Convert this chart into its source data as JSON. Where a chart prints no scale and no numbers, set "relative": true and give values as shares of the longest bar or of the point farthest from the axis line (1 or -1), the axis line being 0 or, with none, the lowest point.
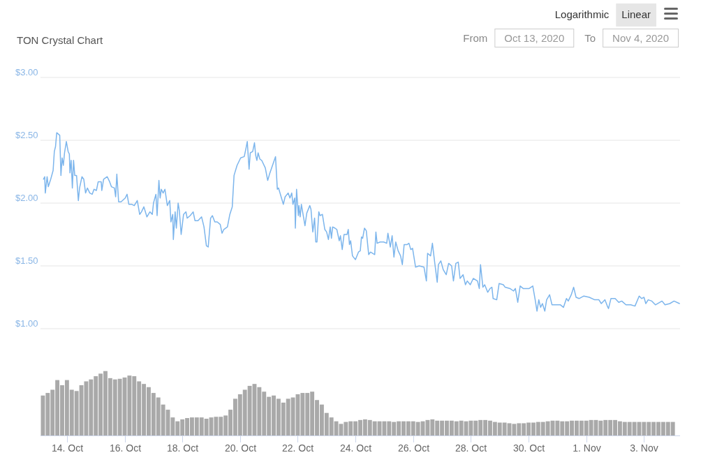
{
  "chart_data": [
    {
      "type": "line",
      "title": "TON Crystal Chart",
      "annotations": [
        "Logarithmic",
        "Linear",
        "From",
        "Oct 13, 2020",
        "To",
        "Nov 4, 2020"
      ],
      "color": "#7cb5ec",
      "x": [
        "2020-10-13T04:30",
        "2020-10-13T05:30",
        "2020-10-13T06:00",
        "2020-10-13T07:30",
        "2020-10-13T08:30",
        "2020-10-13T10:30",
        "2020-10-13T12:30",
        "2020-10-13T13:30",
        "2020-10-13T14:30",
        "2020-10-13T15:30",
        "2020-10-13T18:00",
        "2020-10-13T19:00",
        "2020-10-13T20:00",
        "2020-10-13T21:00",
        "2020-10-13T22:00",
        "2020-10-13T23:30",
        "2020-10-14T01:00",
        "2020-10-14T02:00",
        "2020-10-14T02:30",
        "2020-10-14T03:30",
        "2020-10-14T04:30",
        "2020-10-14T05:30",
        "2020-10-14T06:30",
        "2020-10-14T08:00",
        "2020-10-14T09:30",
        "2020-10-14T10:30",
        "2020-10-14T12:30",
        "2020-10-14T14:00",
        "2020-10-14T15:30",
        "2020-10-14T17:00",
        "2020-10-14T19:00",
        "2020-10-14T21:00",
        "2020-10-14T22:30",
        "2020-10-15T00:30",
        "2020-10-15T02:00",
        "2020-10-15T04:30",
        "2020-10-15T05:00",
        "2020-10-15T06:30",
        "2020-10-15T09:30",
        "2020-10-15T11:30",
        "2020-10-15T13:00",
        "2020-10-15T15:30",
        "2020-10-15T16:30",
        "2020-10-15T17:30",
        "2020-10-15T19:00",
        "2020-10-15T21:00",
        "2020-10-16T00:30",
        "2020-10-16T02:00",
        "2020-10-16T03:30",
        "2020-10-16T06:00",
        "2020-10-16T08:00",
        "2020-10-16T10:30",
        "2020-10-16T12:30",
        "2020-10-16T14:00",
        "2020-10-16T16:00",
        "2020-10-16T18:30",
        "2020-10-16T21:00",
        "2020-10-16T23:00",
        "2020-10-17T00:00",
        "2020-10-17T02:00",
        "2020-10-17T03:00",
        "2020-10-17T04:30",
        "2020-10-17T05:30",
        "2020-10-17T06:30",
        "2020-10-17T08:00",
        "2020-10-17T09:30",
        "2020-10-17T11:30",
        "2020-10-17T13:30",
        "2020-10-17T14:30",
        "2020-10-17T16:00",
        "2020-10-17T16:30",
        "2020-10-17T18:00",
        "2020-10-17T19:00",
        "2020-10-17T20:30",
        "2020-10-17T21:30",
        "2020-10-17T23:00",
        "2020-10-18T01:00",
        "2020-10-18T03:00",
        "2020-10-18T04:00",
        "2020-10-18T06:30",
        "2020-10-18T09:00",
        "2020-10-18T10:30",
        "2020-10-18T13:00",
        "2020-10-18T16:00",
        "2020-10-18T18:00",
        "2020-10-18T20:00",
        "2020-10-18T21:30",
        "2020-10-18T23:30",
        "2020-10-19T01:00",
        "2020-10-19T03:00",
        "2020-10-19T05:00",
        "2020-10-19T07:30",
        "2020-10-19T09:00",
        "2020-10-19T10:30",
        "2020-10-19T13:30",
        "2020-10-19T15:30",
        "2020-10-19T17:30",
        "2020-10-19T19:00",
        "2020-10-19T21:30",
        "2020-10-20T00:30",
        "2020-10-20T03:30",
        "2020-10-20T05:00",
        "2020-10-20T06:00",
        "2020-10-20T07:30",
        "2020-10-20T08:30",
        "2020-10-20T10:30",
        "2020-10-20T12:00",
        "2020-10-20T13:00",
        "2020-10-20T14:00",
        "2020-10-20T15:00",
        "2020-10-20T16:30",
        "2020-10-20T18:00",
        "2020-10-20T21:00",
        "2020-10-20T23:00",
        "2020-10-21T00:30",
        "2020-10-21T05:30",
        "2020-10-21T07:00",
        "2020-10-21T08:00",
        "2020-10-21T12:00",
        "2020-10-21T13:30",
        "2020-10-21T16:00",
        "2020-10-21T17:30",
        "2020-10-21T19:00",
        "2020-10-21T20:00",
        "2020-10-21T21:30",
        "2020-10-21T22:00",
        "2020-10-21T23:00",
        "2020-10-22T00:30",
        "2020-10-22T01:00",
        "2020-10-22T02:00",
        "2020-10-22T03:00",
        "2020-10-22T06:00",
        "2020-10-22T07:30",
        "2020-10-22T10:00",
        "2020-10-22T11:00",
        "2020-10-22T12:30",
        "2020-10-22T14:00",
        "2020-10-22T15:00",
        "2020-10-22T16:00",
        "2020-10-22T17:30",
        "2020-10-22T18:30",
        "2020-10-22T20:30",
        "2020-10-22T22:30",
        "2020-10-23T00:00",
        "2020-10-23T01:30",
        "2020-10-23T03:00",
        "2020-10-23T04:00",
        "2020-10-23T05:00",
        "2020-10-23T07:00",
        "2020-10-23T08:30",
        "2020-10-23T10:30",
        "2020-10-23T11:30",
        "2020-10-23T13:00",
        "2020-10-23T14:30",
        "2020-10-23T17:00",
        "2020-10-23T18:00",
        "2020-10-23T19:00",
        "2020-10-23T20:00",
        "2020-10-23T21:30",
        "2020-10-24T00:00",
        "2020-10-24T02:30",
        "2020-10-24T04:00",
        "2020-10-24T05:00",
        "2020-10-24T06:00",
        "2020-10-24T07:30",
        "2020-10-24T09:00",
        "2020-10-24T11:00",
        "2020-10-24T12:30",
        "2020-10-24T16:00",
        "2020-10-24T17:00",
        "2020-10-24T18:00",
        "2020-10-24T20:30",
        "2020-10-24T23:30",
        "2020-10-25T02:00",
        "2020-10-25T03:00",
        "2020-10-25T05:00",
        "2020-10-25T06:30",
        "2020-10-25T08:00",
        "2020-10-25T09:30",
        "2020-10-25T11:30",
        "2020-10-25T13:30",
        "2020-10-25T15:00",
        "2020-10-25T16:30",
        "2020-10-25T19:00",
        "2020-10-25T20:30",
        "2020-10-25T22:00",
        "2020-10-25T23:30",
        "2020-10-26T02:00",
        "2020-10-26T05:00",
        "2020-10-26T09:00",
        "2020-10-26T11:00",
        "2020-10-26T12:00",
        "2020-10-26T14:30",
        "2020-10-26T16:00",
        "2020-10-26T18:00",
        "2020-10-26T20:00",
        "2020-10-26T21:00",
        "2020-10-26T23:00",
        "2020-10-27T01:00",
        "2020-10-27T03:30",
        "2020-10-27T05:30",
        "2020-10-27T08:00",
        "2020-10-27T09:30",
        "2020-10-27T11:30",
        "2020-10-27T13:30",
        "2020-10-27T15:00",
        "2020-10-27T17:30",
        "2020-10-27T19:30",
        "2020-10-27T21:00",
        "2020-10-27T23:30",
        "2020-10-28T02:00",
        "2020-10-28T05:30",
        "2020-10-28T07:00",
        "2020-10-28T08:00",
        "2020-10-28T10:00",
        "2020-10-28T11:30",
        "2020-10-28T14:00",
        "2020-10-28T16:00",
        "2020-10-28T17:30",
        "2020-10-28T18:30",
        "2020-10-28T21:30",
        "2020-10-28T23:30",
        "2020-10-29T03:00",
        "2020-10-29T04:30",
        "2020-10-29T08:30",
        "2020-10-29T11:30",
        "2020-10-29T13:00",
        "2020-10-29T15:00",
        "2020-10-29T17:00",
        "2020-10-29T19:30",
        "2020-10-30T00:30",
        "2020-10-30T03:30",
        "2020-10-30T05:30",
        "2020-10-30T07:00",
        "2020-10-30T08:30",
        "2020-10-30T10:00",
        "2020-10-30T11:30",
        "2020-10-30T13:30",
        "2020-10-30T15:00",
        "2020-10-30T17:30",
        "2020-10-30T19:30",
        "2020-10-30T22:30",
        "2020-10-31T02:30",
        "2020-10-31T05:00",
        "2020-10-31T07:30",
        "2020-10-31T09:00",
        "2020-10-31T11:30",
        "2020-10-31T13:30",
        "2020-10-31T15:30",
        "2020-10-31T18:00",
        "2020-10-31T22:00",
        "2020-11-01T02:30",
        "2020-11-01T07:00",
        "2020-11-01T10:30",
        "2020-11-01T12:30",
        "2020-11-01T15:30",
        "2020-11-01T17:30",
        "2020-11-01T18:30",
        "2020-11-01T20:30",
        "2020-11-02T00:00",
        "2020-11-02T03:00",
        "2020-11-02T05:30",
        "2020-11-02T09:00",
        "2020-11-02T13:00",
        "2020-11-02T16:30",
        "2020-11-02T20:00",
        "2020-11-02T22:00",
        "2020-11-03T00:00",
        "2020-11-03T01:30",
        "2020-11-03T03:30",
        "2020-11-03T06:30",
        "2020-11-03T09:30",
        "2020-11-03T15:00",
        "2020-11-03T17:30",
        "2020-11-03T21:30",
        "2020-11-04T01:00",
        "2020-11-04T05:30"
      ],
      "values": [
        2.19,
        2.21,
        2.08,
        2.21,
        2.13,
        2.19,
        2.26,
        2.41,
        2.45,
        2.56,
        2.54,
        2.22,
        2.36,
        2.3,
        2.4,
        2.49,
        2.41,
        2.39,
        2.24,
        2.34,
        2.12,
        2.34,
        2.22,
        2.22,
        2.02,
        2.12,
        2.21,
        2.19,
        2.08,
        2.12,
        2.08,
        2.07,
        2.11,
        2.1,
        2.17,
        2.17,
        2.1,
        2.19,
        2.21,
        2.17,
        2.13,
        2.12,
        2.05,
        2.23,
        2.01,
        2.01,
        2.04,
        2.07,
        1.99,
        1.99,
        1.98,
        2.02,
        1.91,
        1.93,
        1.97,
        1.89,
        1.93,
        1.91,
        2.0,
        2.07,
        1.9,
        2.18,
        2.04,
        2.11,
        2.08,
        2.11,
        1.98,
        2.02,
        1.85,
        1.91,
        1.71,
        1.93,
        1.8,
        2.0,
        1.94,
        1.75,
        1.91,
        1.93,
        1.88,
        1.9,
        1.93,
        1.86,
        1.86,
        1.89,
        1.81,
        1.66,
        1.65,
        1.88,
        1.9,
        1.85,
        1.85,
        1.83,
        1.76,
        1.79,
        1.81,
        1.91,
        1.97,
        2.22,
        2.3,
        2.36,
        2.37,
        2.44,
        2.49,
        2.27,
        2.4,
        2.41,
        2.48,
        2.38,
        2.34,
        2.4,
        2.35,
        2.34,
        2.28,
        2.18,
        2.23,
        2.37,
        2.11,
        2.12,
        1.99,
        2.05,
        2.08,
        2.04,
        2.08,
        1.99,
        2.04,
        1.8,
        2.11,
        1.9,
        1.98,
        1.89,
        1.99,
        1.82,
        1.92,
        1.98,
        1.95,
        1.77,
        1.88,
        1.69,
        1.69,
        1.93,
        1.9,
        1.91,
        1.79,
        1.77,
        1.71,
        1.81,
        1.72,
        1.81,
        1.8,
        1.79,
        1.7,
        1.74,
        1.63,
        1.75,
        1.75,
        1.79,
        1.67,
        1.7,
        1.58,
        1.55,
        1.61,
        1.62,
        1.73,
        1.72,
        1.8,
        1.78,
        1.59,
        1.61,
        1.59,
        1.77,
        1.68,
        1.69,
        1.69,
        1.68,
        1.76,
        1.65,
        1.74,
        1.57,
        1.69,
        1.62,
        1.58,
        1.51,
        1.67,
        1.67,
        1.68,
        1.63,
        1.64,
        1.49,
        1.5,
        1.49,
        1.38,
        1.6,
        1.58,
        1.68,
        1.52,
        1.37,
        1.51,
        1.54,
        1.47,
        1.43,
        1.52,
        1.5,
        1.38,
        1.52,
        1.53,
        1.4,
        1.43,
        1.35,
        1.38,
        1.35,
        1.4,
        1.38,
        1.32,
        1.51,
        1.33,
        1.35,
        1.29,
        1.32,
        1.33,
        1.24,
        1.23,
        1.36,
        1.35,
        1.33,
        1.32,
        1.3,
        1.32,
        1.21,
        1.34,
        1.32,
        1.32,
        1.34,
        1.23,
        1.14,
        1.23,
        1.17,
        1.2,
        1.14,
        1.23,
        1.27,
        1.19,
        1.19,
        1.19,
        1.17,
        1.24,
        1.22,
        1.27,
        1.33,
        1.25,
        1.24,
        1.26,
        1.25,
        1.23,
        1.23,
        1.2,
        1.23,
        1.18,
        1.16,
        1.24,
        1.24,
        1.21,
        1.22,
        1.19,
        1.19,
        1.18,
        1.26,
        1.24,
        1.25,
        1.2,
        1.23,
        1.22,
        1.19,
        1.22,
        1.19,
        1.2,
        1.22,
        1.2
      ],
      "xlim": [
        "2020-10-13T02:00",
        "2020-11-04T06:00"
      ],
      "ylim": [
        1,
        3
      ],
      "yticks": [
        {
          "value": 1,
          "label": "$1.00"
        },
        {
          "value": 1.5,
          "label": "$1.50"
        },
        {
          "value": 2,
          "label": "$2.00"
        },
        {
          "value": 2.5,
          "label": "$2.50"
        },
        {
          "value": 3,
          "label": "$3.00"
        }
      ],
      "grid": "y",
      "tick_labels": "y"
    },
    {
      "type": "bar",
      "relative": true,
      "color": "#a9a9a9",
      "x": [
        "2020-10-13T04:00",
        "2020-10-13T08:00",
        "2020-10-13T12:00",
        "2020-10-13T16:00",
        "2020-10-13T20:00",
        "2020-10-14T00:00",
        "2020-10-14T04:00",
        "2020-10-14T08:00",
        "2020-10-14T12:00",
        "2020-10-14T16:00",
        "2020-10-14T20:00",
        "2020-10-15T00:00",
        "2020-10-15T04:00",
        "2020-10-15T08:00",
        "2020-10-15T12:00",
        "2020-10-15T16:00",
        "2020-10-15T20:00",
        "2020-10-16T00:00",
        "2020-10-16T04:00",
        "2020-10-16T08:00",
        "2020-10-16T12:00",
        "2020-10-16T16:00",
        "2020-10-16T20:00",
        "2020-10-17T00:00",
        "2020-10-17T04:00",
        "2020-10-17T08:00",
        "2020-10-17T12:00",
        "2020-10-17T16:00",
        "2020-10-17T20:00",
        "2020-10-18T00:00",
        "2020-10-18T04:00",
        "2020-10-18T08:00",
        "2020-10-18T12:00",
        "2020-10-18T16:00",
        "2020-10-18T20:00",
        "2020-10-19T00:00",
        "2020-10-19T04:00",
        "2020-10-19T08:00",
        "2020-10-19T12:00",
        "2020-10-19T16:00",
        "2020-10-19T20:00",
        "2020-10-20T00:00",
        "2020-10-20T04:00",
        "2020-10-20T08:00",
        "2020-10-20T12:00",
        "2020-10-20T16:00",
        "2020-10-20T20:00",
        "2020-10-21T00:00",
        "2020-10-21T04:00",
        "2020-10-21T08:00",
        "2020-10-21T12:00",
        "2020-10-21T16:00",
        "2020-10-21T20:00",
        "2020-10-22T00:00",
        "2020-10-22T04:00",
        "2020-10-22T08:00",
        "2020-10-22T12:00",
        "2020-10-22T16:00",
        "2020-10-22T20:00",
        "2020-10-23T00:00",
        "2020-10-23T04:00",
        "2020-10-23T08:00",
        "2020-10-23T12:00",
        "2020-10-23T16:00",
        "2020-10-23T20:00",
        "2020-10-24T00:00",
        "2020-10-24T04:00",
        "2020-10-24T08:00",
        "2020-10-24T12:00",
        "2020-10-24T16:00",
        "2020-10-24T20:00",
        "2020-10-25T00:00",
        "2020-10-25T04:00",
        "2020-10-25T08:00",
        "2020-10-25T12:00",
        "2020-10-25T16:00",
        "2020-10-25T20:00",
        "2020-10-26T00:00",
        "2020-10-26T04:00",
        "2020-10-26T08:00",
        "2020-10-26T12:00",
        "2020-10-26T16:00",
        "2020-10-26T20:00",
        "2020-10-27T00:00",
        "2020-10-27T04:00",
        "2020-10-27T08:00",
        "2020-10-27T12:00",
        "2020-10-27T16:00",
        "2020-10-27T20:00",
        "2020-10-28T00:00",
        "2020-10-28T04:00",
        "2020-10-28T08:00",
        "2020-10-28T12:00",
        "2020-10-28T16:00",
        "2020-10-28T20:00",
        "2020-10-29T00:00",
        "2020-10-29T04:00",
        "2020-10-29T08:00",
        "2020-10-29T12:00",
        "2020-10-29T16:00",
        "2020-10-29T20:00",
        "2020-10-30T00:00",
        "2020-10-30T04:00",
        "2020-10-30T08:00",
        "2020-10-30T12:00",
        "2020-10-30T16:00",
        "2020-10-30T20:00",
        "2020-10-31T00:00",
        "2020-10-31T04:00",
        "2020-10-31T08:00",
        "2020-10-31T12:00",
        "2020-10-31T16:00",
        "2020-10-31T20:00",
        "2020-11-01T00:00",
        "2020-11-01T04:00",
        "2020-11-01T08:00",
        "2020-11-01T12:00",
        "2020-11-01T16:00",
        "2020-11-01T20:00",
        "2020-11-02T00:00",
        "2020-11-02T04:00",
        "2020-11-02T08:00",
        "2020-11-02T12:00",
        "2020-11-02T16:00",
        "2020-11-02T20:00",
        "2020-11-03T00:00",
        "2020-11-03T04:00",
        "2020-11-03T08:00",
        "2020-11-03T12:00",
        "2020-11-03T16:00",
        "2020-11-03T20:00",
        "2020-11-04T00:00"
      ],
      "values": [
        0.62,
        0.66,
        0.71,
        0.86,
        0.78,
        0.86,
        0.71,
        0.69,
        0.78,
        0.84,
        0.87,
        0.92,
        0.96,
        1,
        0.89,
        0.87,
        0.88,
        0.9,
        0.93,
        0.92,
        0.84,
        0.8,
        0.75,
        0.66,
        0.59,
        0.48,
        0.4,
        0.28,
        0.22,
        0.25,
        0.27,
        0.28,
        0.28,
        0.28,
        0.26,
        0.28,
        0.29,
        0.29,
        0.31,
        0.4,
        0.57,
        0.64,
        0.71,
        0.77,
        0.8,
        0.75,
        0.68,
        0.6,
        0.62,
        0.57,
        0.51,
        0.57,
        0.59,
        0.64,
        0.66,
        0.66,
        0.68,
        0.55,
        0.48,
        0.35,
        0.28,
        0.22,
        0.18,
        0.21,
        0.22,
        0.22,
        0.24,
        0.25,
        0.24,
        0.22,
        0.22,
        0.22,
        0.22,
        0.21,
        0.22,
        0.22,
        0.22,
        0.22,
        0.21,
        0.22,
        0.24,
        0.25,
        0.23,
        0.23,
        0.23,
        0.23,
        0.22,
        0.23,
        0.22,
        0.23,
        0.23,
        0.24,
        0.24,
        0.23,
        0.21,
        0.2,
        0.2,
        0.19,
        0.18,
        0.19,
        0.19,
        0.2,
        0.2,
        0.21,
        0.21,
        0.22,
        0.23,
        0.23,
        0.22,
        0.22,
        0.23,
        0.23,
        0.23,
        0.23,
        0.24,
        0.24,
        0.23,
        0.24,
        0.24,
        0.24,
        0.22,
        0.21,
        0.21,
        0.21,
        0.21,
        0.21,
        0.21,
        0.21,
        0.21,
        0.21,
        0.21,
        0.21
      ],
      "xlim": [
        "2020-10-13T02:00",
        "2020-11-04T06:00"
      ],
      "xticks": [
        {
          "value": "2020-10-14",
          "label": "14. Oct"
        },
        {
          "value": "2020-10-16",
          "label": "16. Oct"
        },
        {
          "value": "2020-10-18",
          "label": "18. Oct"
        },
        {
          "value": "2020-10-20",
          "label": "20. Oct"
        },
        {
          "value": "2020-10-22",
          "label": "22. Oct"
        },
        {
          "value": "2020-10-24",
          "label": "24. Oct"
        },
        {
          "value": "2020-10-26",
          "label": "26. Oct"
        },
        {
          "value": "2020-10-28",
          "label": "28. Oct"
        },
        {
          "value": "2020-10-30",
          "label": "30. Oct"
        },
        {
          "value": "2020-11-01",
          "label": "1. Nov"
        },
        {
          "value": "2020-11-03",
          "label": "3. Nov"
        }
      ],
      "tick_labels": "x"
    }
  ]
}
